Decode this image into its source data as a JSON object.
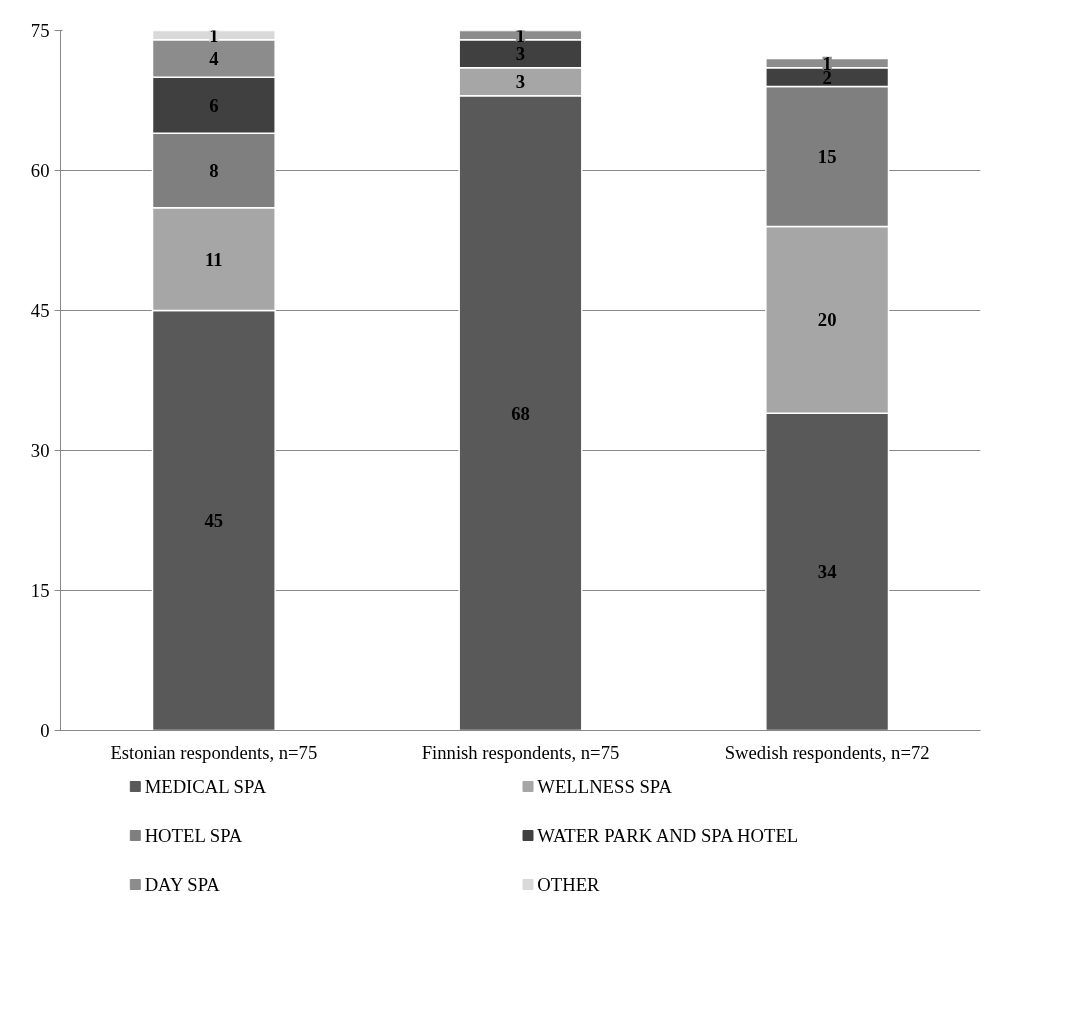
{
  "chart_data": {
    "type": "bar",
    "stacked": true,
    "categories": [
      "Estonian respondents, n=75",
      "Finnish respondents, n=75",
      "Swedish respondents, n=72"
    ],
    "series": [
      {
        "name": "MEDICAL SPA",
        "color": "#595959",
        "values": [
          45,
          68,
          34
        ]
      },
      {
        "name": "WELLNESS SPA",
        "color": "#a6a6a6",
        "values": [
          11,
          3,
          20
        ]
      },
      {
        "name": "HOTEL SPA",
        "color": "#7f7f7f",
        "values": [
          8,
          null,
          15
        ]
      },
      {
        "name": "WATER PARK AND SPA HOTEL",
        "color": "#404040",
        "values": [
          6,
          3,
          2
        ]
      },
      {
        "name": "DAY SPA",
        "color": "#8c8c8c",
        "values": [
          4,
          1,
          1
        ]
      },
      {
        "name": "OTHER",
        "color": "#d9d9d9",
        "values": [
          1,
          null,
          null
        ]
      }
    ],
    "ylim": [
      0,
      75
    ],
    "yticks": [
      0,
      15,
      30,
      45,
      60,
      75
    ],
    "grid": "y",
    "legend": "bottom",
    "data_labels": true
  }
}
